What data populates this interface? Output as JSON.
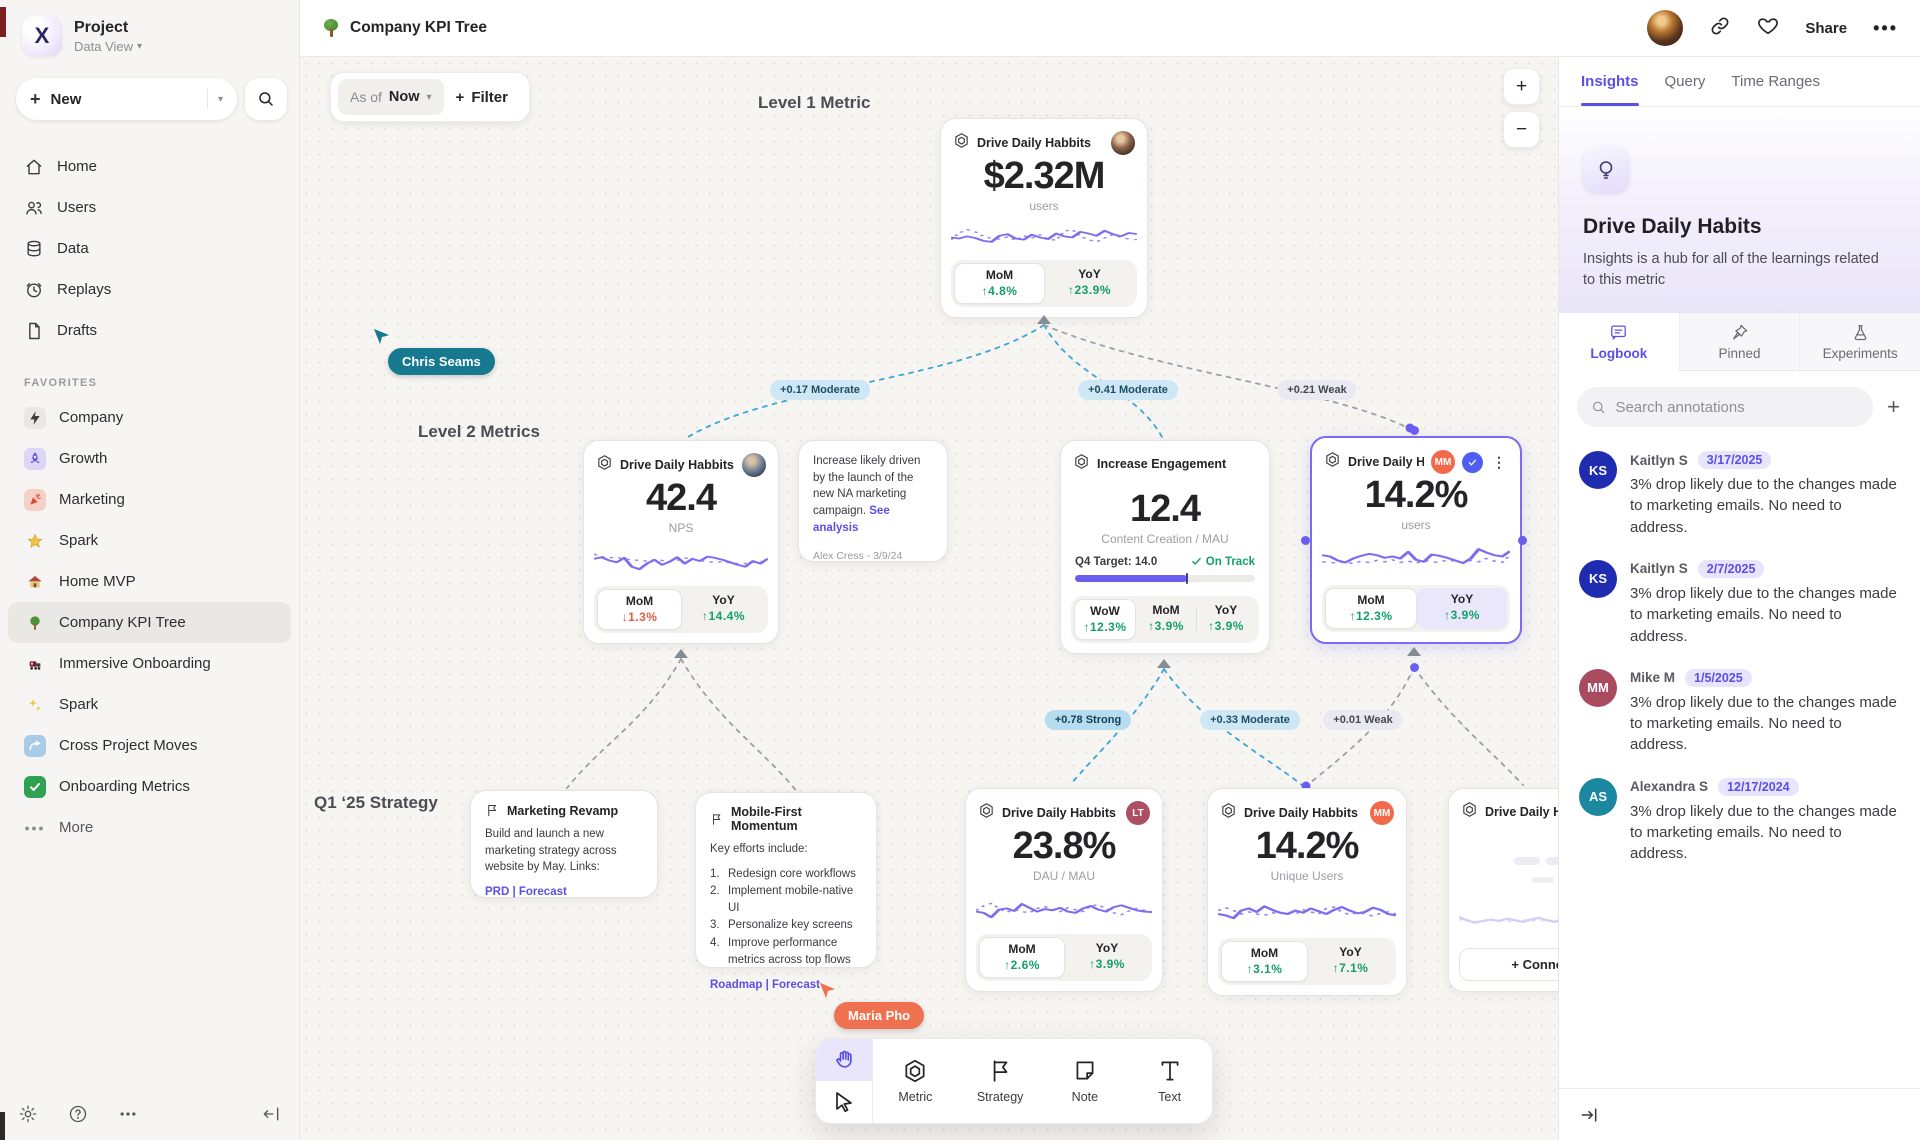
{
  "sidebar": {
    "project_name": "Project",
    "project_view": "Data View",
    "new_label": "New",
    "nav": [
      {
        "label": "Home"
      },
      {
        "label": "Users"
      },
      {
        "label": "Data"
      },
      {
        "label": "Replays"
      },
      {
        "label": "Drafts"
      }
    ],
    "favorites_label": "FAVORITES",
    "favorites": [
      {
        "label": "Company",
        "icon": "lightning-icon"
      },
      {
        "label": "Growth",
        "icon": "rocket-icon"
      },
      {
        "label": "Marketing",
        "icon": "confetti-icon"
      },
      {
        "label": "Spark",
        "icon": "star-icon"
      },
      {
        "label": "Home MVP",
        "icon": "house-icon"
      },
      {
        "label": "Company KPI Tree",
        "icon": "tree-icon",
        "selected": true
      },
      {
        "label": "Immersive Onboarding",
        "icon": "train-icon"
      },
      {
        "label": "Spark",
        "icon": "sparkles-icon"
      },
      {
        "label": "Cross Project Moves",
        "icon": "arrow-up-right-icon"
      },
      {
        "label": "Onboarding Metrics",
        "icon": "check-icon"
      }
    ],
    "more_label": "More"
  },
  "header": {
    "title": "Company KPI Tree",
    "share_label": "Share"
  },
  "canvas": {
    "as_of_label": "As of",
    "as_of_value": "Now",
    "filter_label": "Filter",
    "zoom_in": "+",
    "zoom_out": "−",
    "levels": {
      "l1": "Level 1 Metric",
      "l2": "Level 2 Metrics",
      "q1": "Q1 ‘25 Strategy"
    },
    "cursors": [
      {
        "name": "Chris Seams",
        "color": "#17798F"
      },
      {
        "name": "Maria Pho",
        "color": "#EF7150"
      }
    ],
    "edges": [
      {
        "label": "+0.17 Moderate",
        "strength": "moderate"
      },
      {
        "label": "+0.41 Moderate",
        "strength": "moderate"
      },
      {
        "label": "+0.21 Weak",
        "strength": "weak"
      },
      {
        "label": "+0.78 Strong",
        "strength": "strong"
      },
      {
        "label": "+0.33 Moderate",
        "strength": "moderate"
      },
      {
        "label": "+0.01 Weak",
        "strength": "weak"
      }
    ],
    "cards": {
      "l1": {
        "title": "Drive Daily Habbits",
        "value": "$2.32M",
        "unit": "users",
        "stats": [
          {
            "label": "MoM",
            "value": "↑4.8%",
            "dir": "up"
          },
          {
            "label": "YoY",
            "value": "↑23.9%",
            "dir": "up"
          }
        ],
        "spark": {
          "solid": [
            46,
            42,
            50,
            44,
            34,
            30,
            52,
            58,
            42,
            38,
            56,
            46,
            40,
            60,
            50,
            46,
            66,
            60,
            52,
            70,
            58,
            50,
            62,
            58
          ],
          "dotted": [
            38,
            62,
            74,
            66,
            50,
            42,
            40,
            48,
            36,
            52,
            44,
            56,
            40,
            36,
            68,
            74,
            50,
            38,
            30,
            44,
            56,
            46,
            40,
            38
          ]
        }
      },
      "nps": {
        "title": "Drive Daily Habbits",
        "value": "42.4",
        "unit": "NPS",
        "stats": [
          {
            "label": "MoM",
            "value": "↓1.3%",
            "dir": "down"
          },
          {
            "label": "YoY",
            "value": "↑14.4%",
            "dir": "up"
          }
        ],
        "spark": {
          "solid": [
            55,
            60,
            50,
            44,
            58,
            30,
            22,
            40,
            52,
            36,
            46,
            60,
            40,
            55,
            48,
            62,
            58,
            52,
            44,
            36,
            30,
            48,
            40,
            56
          ],
          "dotted": [
            70,
            62,
            58,
            60,
            55,
            52,
            50,
            48,
            52,
            50,
            46,
            50,
            58,
            54,
            50,
            46,
            44,
            46,
            42,
            40,
            40,
            44,
            46,
            50
          ]
        }
      },
      "engagement": {
        "title": "Increase Engagement",
        "value": "12.4",
        "unit": "Content Creation / MAU",
        "target_label": "Q4 Target: 14.0",
        "status": "On Track",
        "progress_pct": 62,
        "stats": [
          {
            "label": "WoW",
            "value": "↑12.3%",
            "dir": "up"
          },
          {
            "label": "MoM",
            "value": "↑3.9%",
            "dir": "up"
          },
          {
            "label": "YoY",
            "value": "↑3.9%",
            "dir": "up"
          }
        ]
      },
      "selected": {
        "title": "Drive Daily Habb..",
        "badge": "MM",
        "value": "14.2%",
        "unit": "users",
        "stats": [
          {
            "label": "MoM",
            "value": "↑12.3%",
            "dir": "up"
          },
          {
            "label": "YoY",
            "value": "↑3.9%",
            "dir": "up"
          }
        ],
        "spark": {
          "solid": [
            60,
            56,
            44,
            38,
            50,
            58,
            64,
            60,
            52,
            56,
            50,
            70,
            46,
            40,
            62,
            58,
            52,
            44,
            36,
            50,
            78,
            68,
            60,
            56,
            72
          ],
          "dotted": [
            40,
            38,
            36,
            40,
            34,
            42,
            38,
            44,
            40,
            46,
            38,
            42,
            36,
            44,
            40,
            38,
            46,
            42,
            38,
            44,
            40,
            50,
            42,
            38,
            60
          ]
        }
      },
      "dau": {
        "title": "Drive Daily Habbits",
        "badge": "LT",
        "value": "23.8%",
        "unit": "DAU / MAU",
        "stats": [
          {
            "label": "MoM",
            "value": "↑2.6%",
            "dir": "up"
          },
          {
            "label": "YoY",
            "value": "↑3.9%",
            "dir": "up"
          }
        ],
        "spark": {
          "solid": [
            40,
            36,
            22,
            46,
            50,
            42,
            64,
            52,
            40,
            48,
            44,
            52,
            40,
            36,
            50,
            58,
            46,
            40,
            54,
            60,
            52,
            44,
            40,
            38
          ],
          "dotted": [
            44,
            58,
            66,
            50,
            38,
            46,
            40,
            36,
            50,
            56,
            46,
            40,
            52,
            46,
            40,
            58,
            62,
            48,
            36,
            30,
            42,
            50,
            44,
            40
          ]
        }
      },
      "unique": {
        "title": "Drive Daily Habbits",
        "badge": "MM",
        "value": "14.2%",
        "unit": "Unique Users",
        "stats": [
          {
            "label": "MoM",
            "value": "↑3.1%",
            "dir": "up"
          },
          {
            "label": "YoY",
            "value": "↑7.1%",
            "dir": "up"
          }
        ],
        "spark": {
          "solid": [
            40,
            36,
            28,
            50,
            56,
            46,
            62,
            52,
            44,
            40,
            50,
            44,
            56,
            48,
            40,
            52,
            60,
            50,
            42,
            46,
            58,
            52,
            40,
            36
          ],
          "dotted": [
            50,
            58,
            50,
            40,
            46,
            40,
            36,
            44,
            40,
            46,
            40,
            52,
            46,
            40,
            56,
            60,
            46,
            38,
            44,
            40,
            34,
            42,
            46,
            40
          ]
        }
      },
      "ghost": {
        "title": "Drive Daily Hab",
        "connect_label": "+ Connect",
        "spark": {
          "solid": [
            50,
            42,
            36,
            40,
            44,
            40,
            46,
            42,
            38,
            44,
            48,
            42,
            38,
            44,
            50,
            44,
            40,
            46,
            52,
            46,
            42,
            48
          ],
          "dotted": [
            44,
            40,
            38,
            42,
            40,
            44,
            40,
            38,
            44,
            40,
            42,
            40,
            44,
            40,
            38,
            42,
            44,
            40,
            38,
            42,
            40,
            38
          ]
        }
      }
    },
    "notes": {
      "campaign": {
        "body": "Increase likely driven by the launch of the new NA marketing campaign.",
        "link": "See analysis",
        "byline": "Alex Cress - 3/9/24"
      },
      "marketing": {
        "title": "Marketing Revamp",
        "body": "Build and launch a new marketing strategy across website by May. Links:",
        "links": "PRD | Forecast"
      },
      "mobile": {
        "title": "Mobile-First Momentum",
        "intro": "Key efforts include:",
        "items": [
          "Redesign core workflows",
          "Implement mobile-native UI",
          "Personalize key screens",
          "Improve performance metrics across top flows"
        ],
        "links": "Roadmap | Forecast"
      }
    },
    "toolbar": {
      "tools": [
        {
          "label": "Metric"
        },
        {
          "label": "Strategy"
        },
        {
          "label": "Note"
        },
        {
          "label": "Text"
        }
      ]
    }
  },
  "panel": {
    "tabs": [
      {
        "label": "Insights",
        "active": true
      },
      {
        "label": "Query"
      },
      {
        "label": "Time Ranges"
      }
    ],
    "insight": {
      "title": "Drive Daily Habits",
      "description": "Insights is a hub for all of the learnings related to this metric"
    },
    "subtabs": [
      {
        "label": "Logbook",
        "active": true
      },
      {
        "label": "Pinned"
      },
      {
        "label": "Experiments"
      }
    ],
    "search_placeholder": "Search annotations",
    "annotations": [
      {
        "initials": "KS",
        "name": "Kaitlyn S",
        "date": "3/17/2025",
        "body": "3% drop likely due to the changes made to marketing emails. No need to address.",
        "color": "#1F2CB0"
      },
      {
        "initials": "KS",
        "name": "Kaitlyn S",
        "date": "2/7/2025",
        "body": "3% drop likely due to the changes made to marketing emails. No need to address.",
        "color": "#1F2CB0"
      },
      {
        "initials": "MM",
        "name": "Mike M",
        "date": "1/5/2025",
        "body": "3% drop likely due to the changes made to marketing emails. No need to address.",
        "color": "#A94A60"
      },
      {
        "initials": "AS",
        "name": "Alexandra S",
        "date": "12/17/2024",
        "body": "3% drop likely due to the changes made to marketing emails. No need to address.",
        "color": "#1B87A0"
      }
    ]
  },
  "colors": {
    "accent": "#5B50E6",
    "chart": "#7B6FF0",
    "green": "#149F68",
    "red": "#E25C43",
    "edge_blue": "#3BA5D9",
    "selection": "#7A6CF0"
  }
}
